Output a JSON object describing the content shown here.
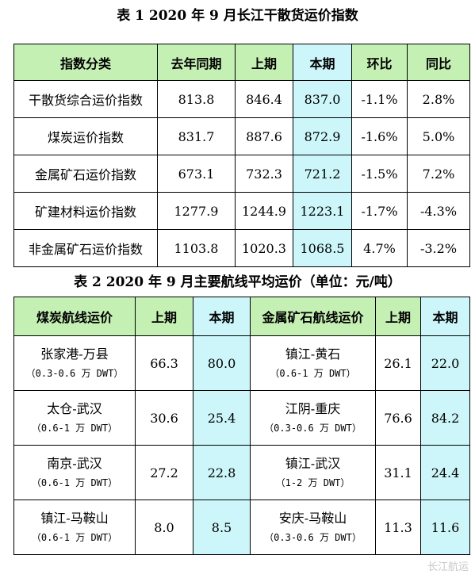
{
  "table1": {
    "title": "表 1   2020 年 9 月长江干散货运价指数",
    "headers": [
      "指数分类",
      "去年同期",
      "上期",
      "本期",
      "环比",
      "同比"
    ],
    "rows": [
      [
        "干散货综合运价指数",
        "813.8",
        "846.4",
        "837.0",
        "-1.1%",
        "2.8%"
      ],
      [
        "煤炭运价指数",
        "831.7",
        "887.6",
        "872.9",
        "-1.6%",
        "5.0%"
      ],
      [
        "金属矿石运价指数",
        "673.1",
        "732.3",
        "721.2",
        "-1.5%",
        "7.2%"
      ],
      [
        "矿建材料运价指数",
        "1277.9",
        "1244.9",
        "1223.1",
        "-1.7%",
        "-4.3%"
      ],
      [
        "非金属矿石运价指数",
        "1103.8",
        "1020.3",
        "1068.5",
        "4.7%",
        "-3.2%"
      ]
    ]
  },
  "table2": {
    "title": "表 2   2020 年 9 月主要航线平均运价（单位：元/吨）",
    "headers": [
      "煤炭航线运价",
      "上期",
      "本期",
      "金属矿石航线运价",
      "上期",
      "本期"
    ],
    "rows": [
      {
        "coal_route": "张家港-万县",
        "coal_cap": "（0.3-0.6 万 DWT）",
        "coal_prev": "66.3",
        "coal_curr": "80.0",
        "ore_route": "镇江-黄石",
        "ore_cap": "（0.6-1 万 DWT）",
        "ore_prev": "26.1",
        "ore_curr": "22.0"
      },
      {
        "coal_route": "太仓-武汉",
        "coal_cap": "（0.6-1 万 DWT）",
        "coal_prev": "30.6",
        "coal_curr": "25.4",
        "ore_route": "江阴-重庆",
        "ore_cap": "（0.3-0.6 万 DWT）",
        "ore_prev": "76.6",
        "ore_curr": "84.2"
      },
      {
        "coal_route": "南京-武汉",
        "coal_cap": "（0.6-1 万 DWT）",
        "coal_prev": "27.2",
        "coal_curr": "22.8",
        "ore_route": "镇江-武汉",
        "ore_cap": "（1-2 万 DWT）",
        "ore_prev": "31.1",
        "ore_curr": "24.4"
      },
      {
        "coal_route": "镇江-马鞍山",
        "coal_cap": "（0.6-1 万 DWT）",
        "coal_prev": "8.0",
        "coal_curr": "8.5",
        "ore_route": "安庆-马鞍山",
        "ore_cap": "（0.3-0.6 万 DWT）",
        "ore_prev": "11.3",
        "ore_curr": "11.6"
      }
    ]
  },
  "watermark": "长江航运",
  "colors": {
    "header_green": "#c5f0b4",
    "current_cyan": "#ccf6fa",
    "border": "#000000"
  }
}
